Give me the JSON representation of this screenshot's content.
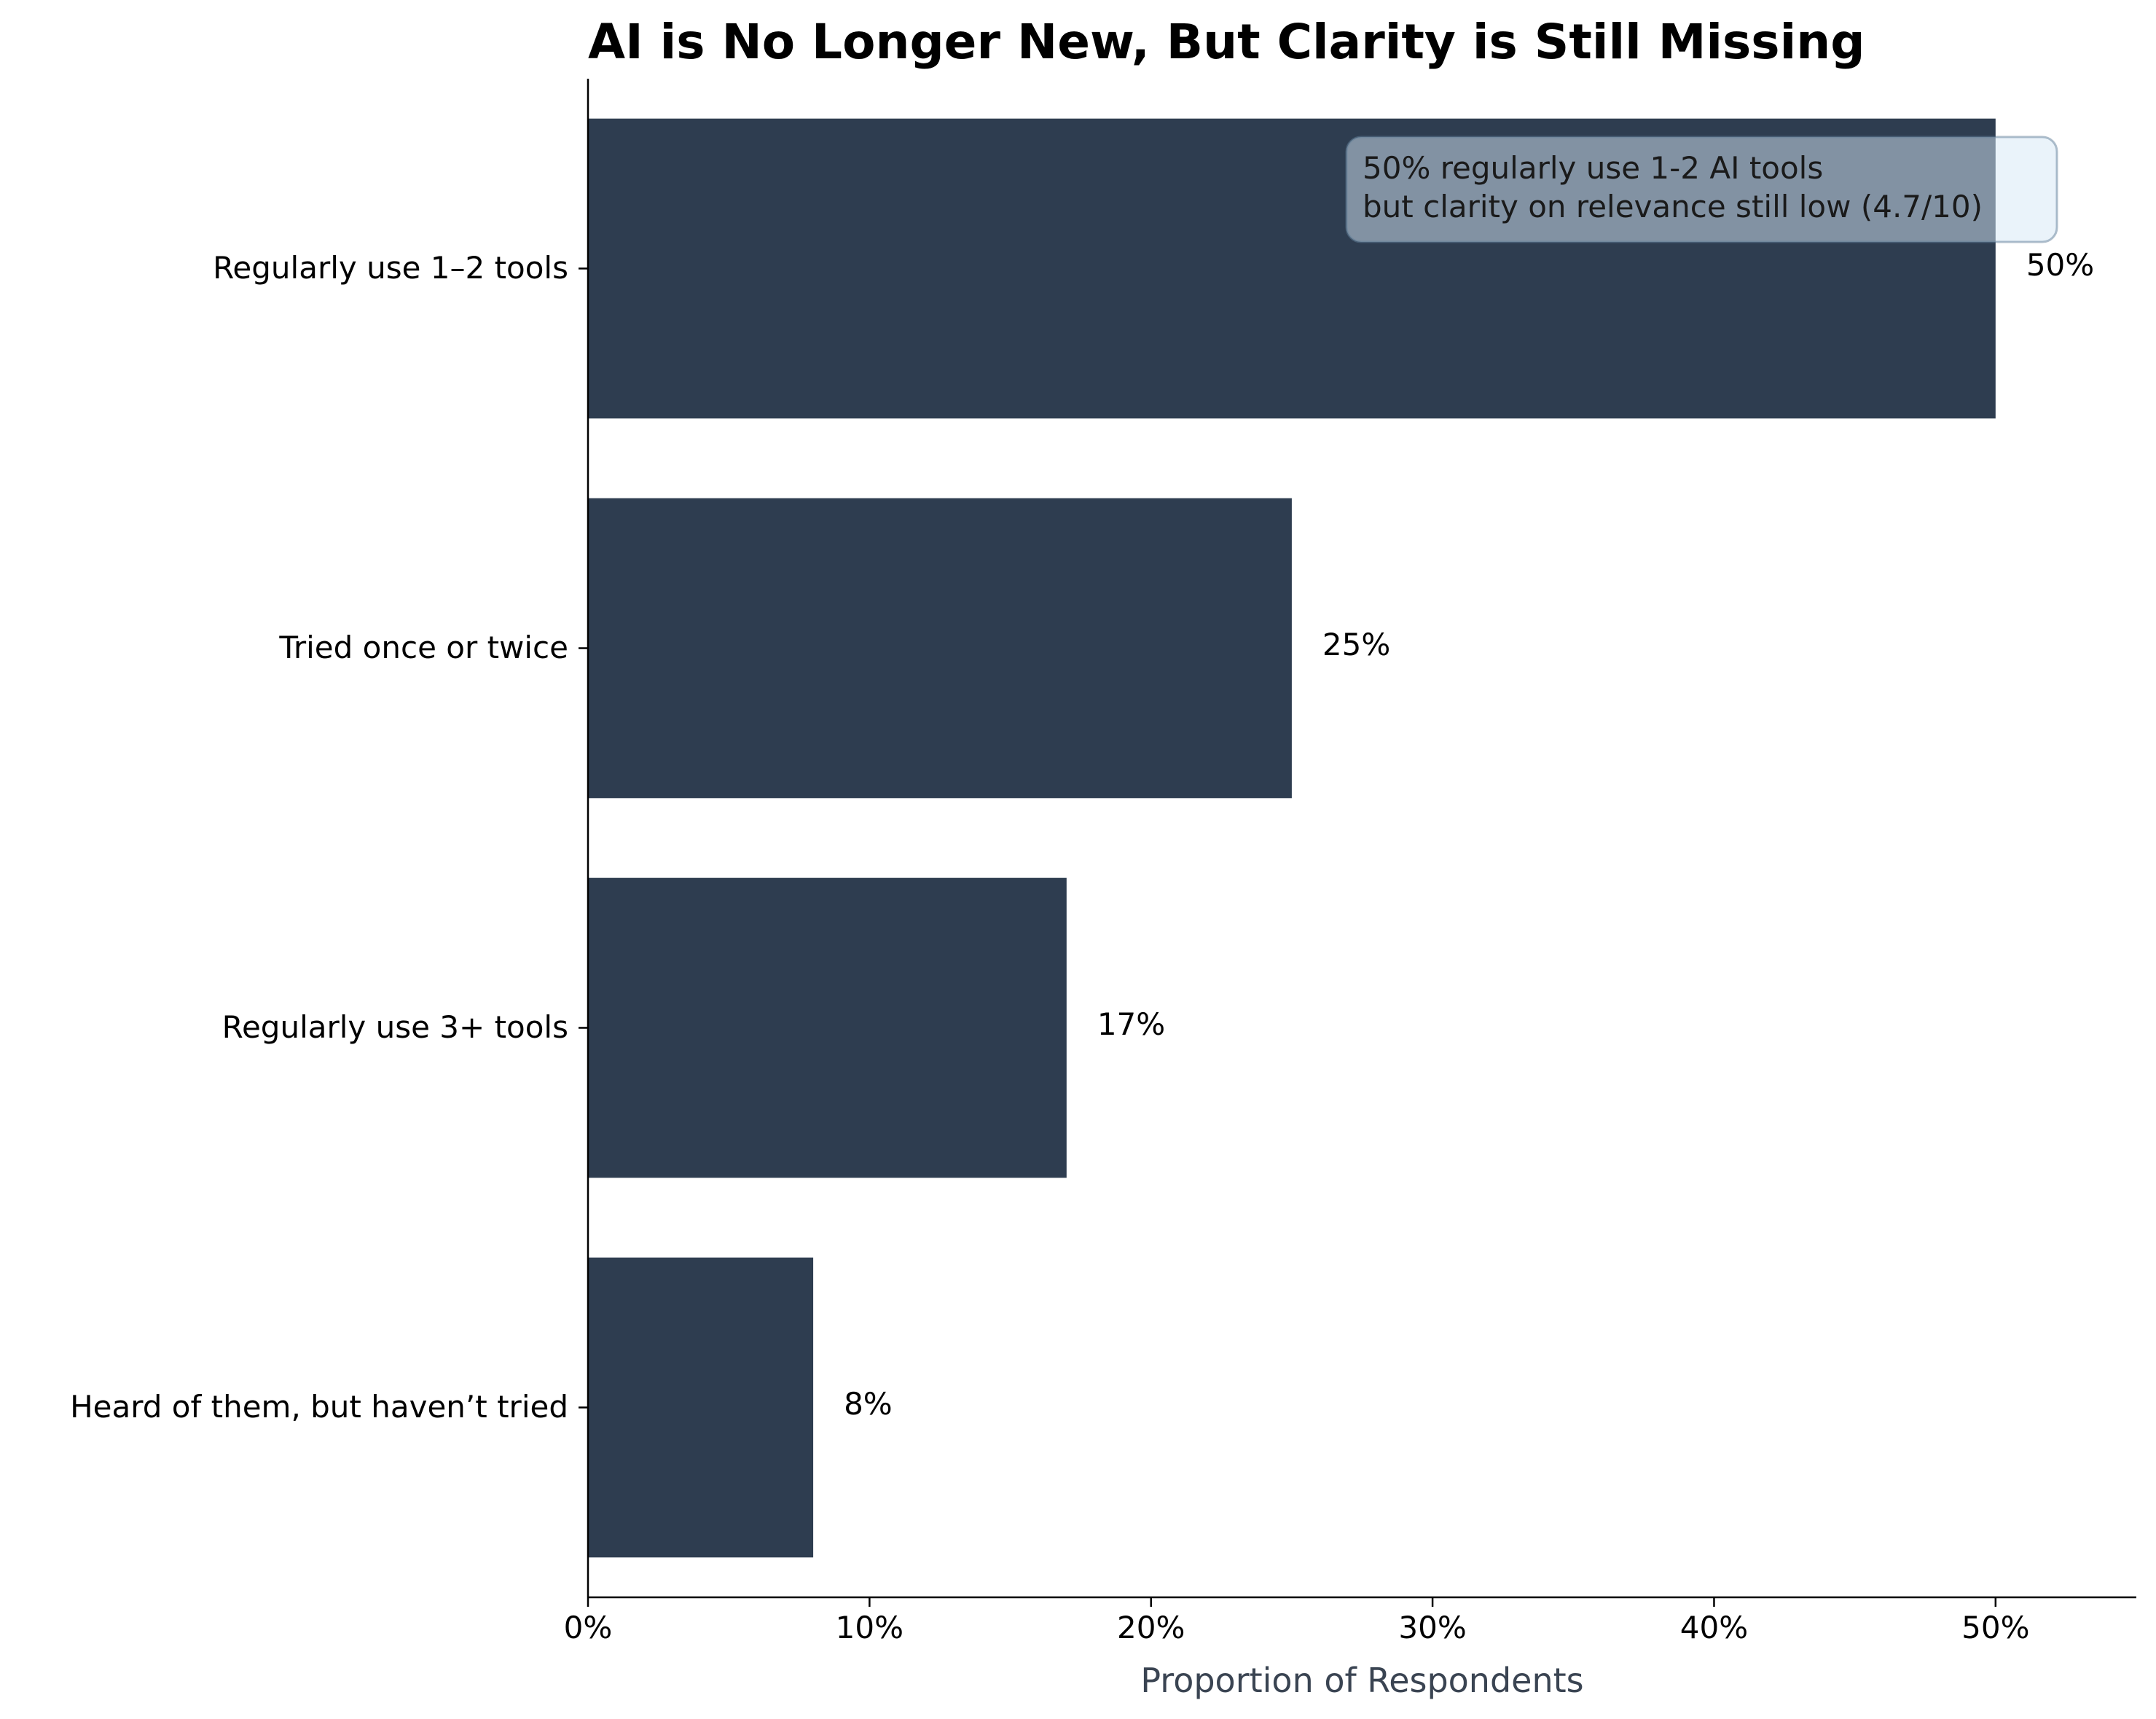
{
  "chart_data": {
    "type": "bar",
    "orientation": "horizontal",
    "title": "AI is No Longer New, But Clarity is Still Missing",
    "xlabel": "Proportion of Respondents",
    "ylabel": "",
    "categories": [
      "Regularly use 1–2 tools",
      "Tried once or twice",
      "Regularly use 3+ tools",
      "Heard of them, but haven’t tried"
    ],
    "values": [
      50,
      25,
      17,
      8
    ],
    "value_labels": [
      "50%",
      "25%",
      "17%",
      "8%"
    ],
    "xlim": [
      0,
      55
    ],
    "xticks": [
      0,
      10,
      20,
      30,
      40,
      50
    ],
    "xtick_labels": [
      "0%",
      "10%",
      "20%",
      "30%",
      "40%",
      "50%"
    ],
    "grid": false,
    "bar_color": "#2e3d50",
    "annotation": {
      "lines": [
        "50% regularly use 1-2 AI tools",
        "but clarity on relevance still low (4.7/10)"
      ],
      "box_color": "#d6e8f5",
      "placement": "top-right"
    }
  }
}
